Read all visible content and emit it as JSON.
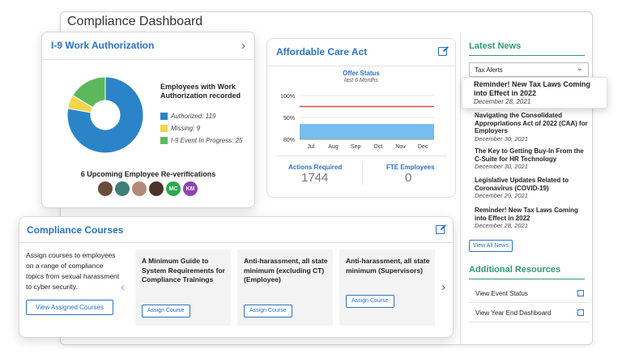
{
  "dashboard": {
    "title": "Compliance Dashboard"
  },
  "i9": {
    "title": "I-9 Work Authorization",
    "legend_title": "Employees with Work Authorization recorded",
    "segments": [
      {
        "label": "Authorized: 119",
        "value": 119,
        "color": "#2b84c8"
      },
      {
        "label": "Missing: 9",
        "value": 9,
        "color": "#f1d54c"
      },
      {
        "label": "I-9 Event In Progress: 25",
        "value": 25,
        "color": "#5cb85c"
      }
    ],
    "reverifications": "6 Upcoming Employee Re-verifications",
    "avatars": [
      {
        "initials": "",
        "color": "#6b4b3a"
      },
      {
        "initials": "",
        "color": "#3f7f7a"
      },
      {
        "initials": "",
        "color": "#b38a77"
      },
      {
        "initials": "",
        "color": "#4a3327"
      },
      {
        "initials": "MC",
        "color": "#2ea84e"
      },
      {
        "initials": "KM",
        "color": "#8e44ad"
      }
    ]
  },
  "aca": {
    "title": "Affordable Care Act",
    "chart_title": "Offer Status",
    "chart_subtitle": "last 6 Months",
    "actions_label": "Actions Required",
    "actions_value": "1744",
    "fte_label": "FTE Employees",
    "fte_value": "0"
  },
  "chart_data": {
    "type": "area",
    "title": "Offer Status",
    "subtitle": "last 6 Months",
    "categories": [
      "Jul",
      "Aug",
      "Sep",
      "Oct",
      "Nov",
      "Dec"
    ],
    "series": [
      {
        "name": "",
        "values": [
          87,
          87,
          87,
          87,
          87,
          87
        ],
        "color": "#5fb2ea"
      },
      {
        "name": "",
        "values": [
          95,
          95,
          95,
          95,
          95,
          95
        ],
        "color": "#d84b4b"
      }
    ],
    "yticks": [
      "100%",
      "90%",
      "80%"
    ],
    "ylim": [
      80,
      100
    ],
    "grid": true
  },
  "news": {
    "title": "Latest News",
    "filter": "Tax Alerts",
    "highlight": {
      "headline": "Reminder! New Tax Laws Coming into Effect in 2022",
      "date": "December 28, 2021"
    },
    "items": [
      {
        "headline": "Navigating the Consolidated Appropriations Act of 2022 (CAA) for Employers",
        "date": "December 30, 2021"
      },
      {
        "headline": "The Key to Getting Buy-In From the C-Suite for HR Technology",
        "date": "December 30, 2021"
      },
      {
        "headline": "Legislative Updates Related to Coronavirus (COVID-19)",
        "date": "December 29, 2021"
      },
      {
        "headline": "Reminder! New Tax Laws Coming into Effect in 2022",
        "date": "December 28, 2021"
      }
    ],
    "view_all": "View All News"
  },
  "resources": {
    "title": "Additional Resources",
    "links": [
      "View Event Status",
      "View Year End Dashboard"
    ]
  },
  "courses": {
    "title": "Compliance Courses",
    "description": "Assign courses to employees on a range of compliance topics from sexual harassment to cyber security.",
    "view_button": "View Assigned Courses",
    "assign_label": "Assign Course",
    "items": [
      "A Minimum Guide to System Requirements for Compliance Trainings",
      "Anti-harassment, all state minimum (excluding CT) (Employee)",
      "Anti-harassment, all state minimum (Supervisors)"
    ]
  }
}
